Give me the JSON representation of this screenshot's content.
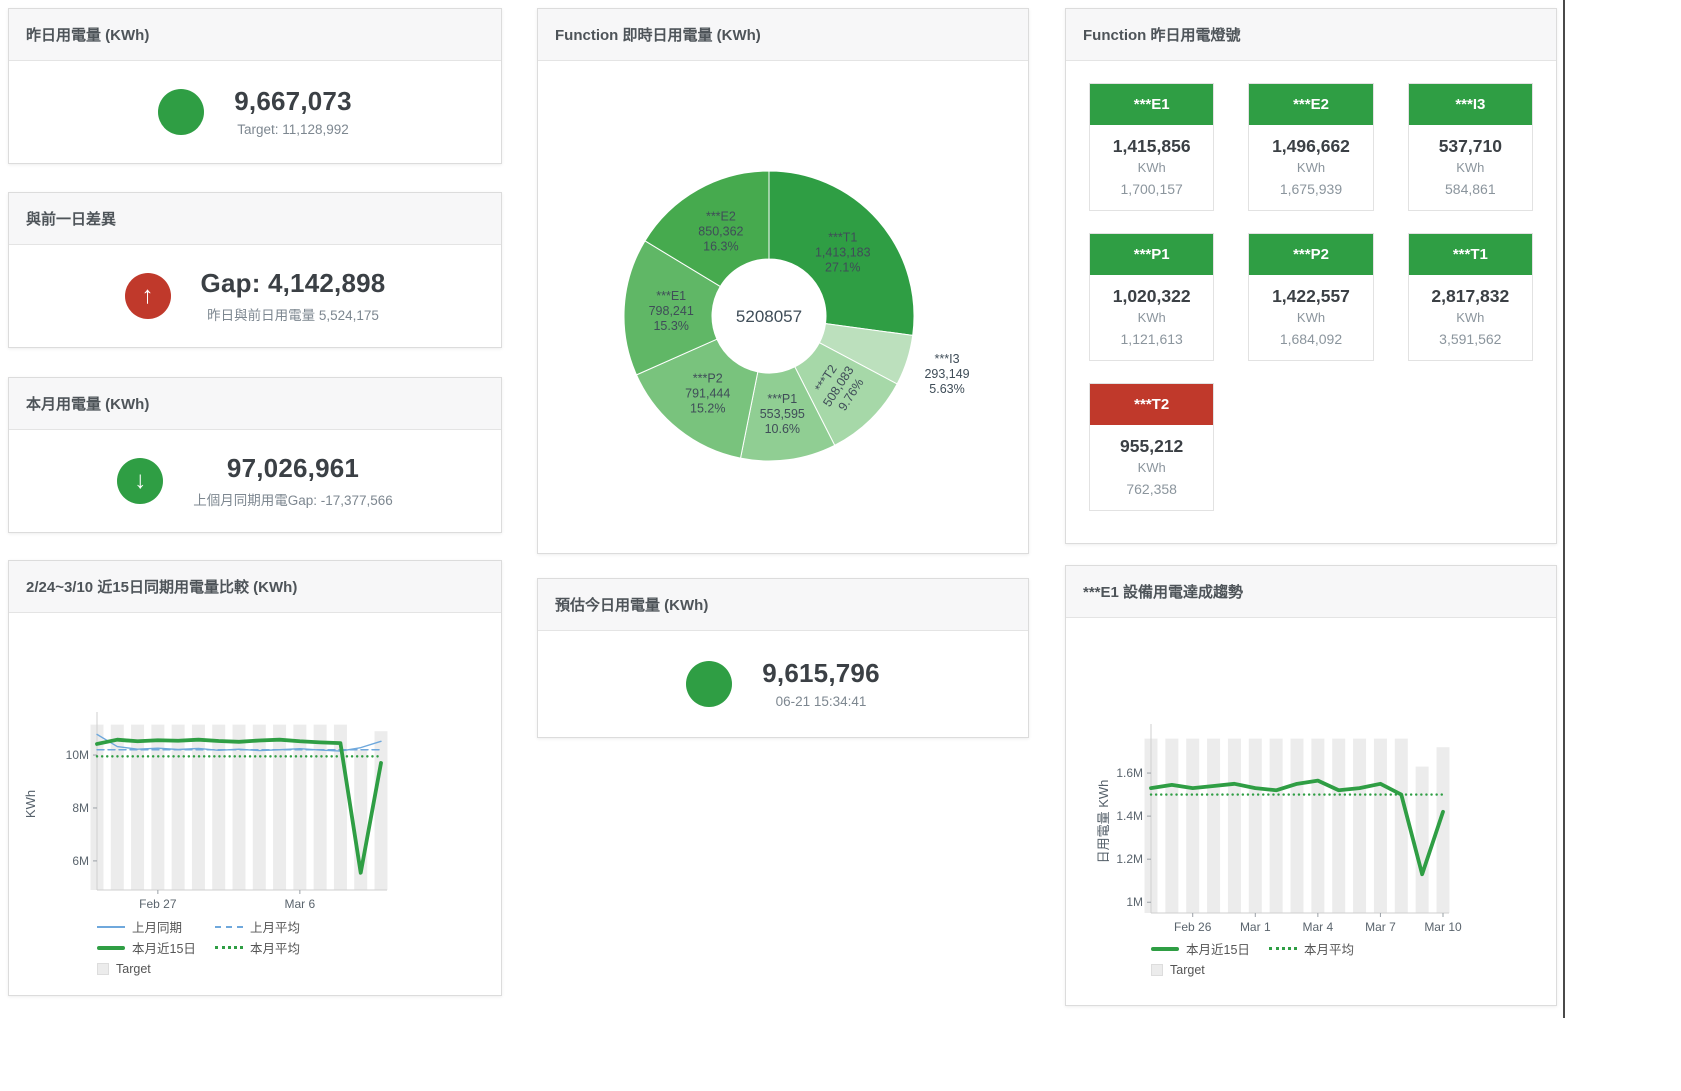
{
  "colors": {
    "green": "#2f9e44",
    "red": "#c0392b",
    "blue": "#6fa8dc",
    "target_bar": "#ececec"
  },
  "panels": {
    "yesterday": {
      "title": "昨日用電量 (KWh)",
      "value": "9,667,073",
      "subtitle": "Target: 11,128,992",
      "icon_glyph": ""
    },
    "gap": {
      "title": "與前一日差異",
      "value": "Gap: 4,142,898",
      "subtitle": "昨日與前日用電量 5,524,175",
      "icon_glyph": "↑"
    },
    "month": {
      "title": "本月用電量 (KWh)",
      "value": "97,026,961",
      "subtitle": "上個月同期用電Gap: -17,377,566",
      "icon_glyph": "↓"
    },
    "estimate": {
      "title": "預估今日用電量 (KWh)",
      "value": "9,615,796",
      "subtitle": "06-21 15:34:41",
      "icon_glyph": ""
    },
    "realtime_donut": {
      "title": "Function 即時日用電量 (KWh)",
      "center_total": "5208057"
    },
    "lights": {
      "title": "Function 昨日用電燈號",
      "tiles": [
        {
          "label": "***E1",
          "value": "1,415,856",
          "unit": "KWh",
          "target": "1,700,157",
          "status": "green"
        },
        {
          "label": "***E2",
          "value": "1,496,662",
          "unit": "KWh",
          "target": "1,675,939",
          "status": "green"
        },
        {
          "label": "***I3",
          "value": "537,710",
          "unit": "KWh",
          "target": "584,861",
          "status": "green"
        },
        {
          "label": "***P1",
          "value": "1,020,322",
          "unit": "KWh",
          "target": "1,121,613",
          "status": "green"
        },
        {
          "label": "***P2",
          "value": "1,422,557",
          "unit": "KWh",
          "target": "1,684,092",
          "status": "green"
        },
        {
          "label": "***T1",
          "value": "2,817,832",
          "unit": "KWh",
          "target": "3,591,562",
          "status": "green"
        },
        {
          "label": "***T2",
          "value": "955,212",
          "unit": "KWh",
          "target": "762,358",
          "status": "red"
        }
      ]
    },
    "compare15": {
      "title": "2/24~3/10 近15日同期用電量比較 (KWh)"
    },
    "trend": {
      "title": "***E1 設備用電達成趨勢"
    }
  },
  "chart_data": [
    {
      "type": "pie",
      "title": "Function 即時日用電量 (KWh)",
      "center_label": "5208057",
      "slices": [
        {
          "name": "***T1",
          "value": 1413183,
          "label": "1,413,183",
          "pct": 27.1,
          "pct_label": "27.1%",
          "color": "#2f9e44"
        },
        {
          "name": "***I3",
          "value": 293149,
          "label": "293,149",
          "pct": 5.63,
          "pct_label": "5.63%",
          "color": "#bce0bd"
        },
        {
          "name": "***T2",
          "value": 508083,
          "label": "508,083",
          "pct": 9.76,
          "pct_label": "9.76%",
          "color": "#a6d8a8"
        },
        {
          "name": "***P1",
          "value": 553595,
          "label": "553,595",
          "pct": 10.6,
          "pct_label": "10.6%",
          "color": "#90ce93"
        },
        {
          "name": "***P2",
          "value": 791444,
          "label": "791,444",
          "pct": 15.2,
          "pct_label": "15.2%",
          "color": "#79c37d"
        },
        {
          "name": "***E1",
          "value": 798241,
          "label": "798,241",
          "pct": 15.3,
          "pct_label": "15.3%",
          "color": "#60b766"
        },
        {
          "name": "***E2",
          "value": 850362,
          "label": "850,362",
          "pct": 16.3,
          "pct_label": "16.3%",
          "color": "#46aa4e"
        }
      ]
    },
    {
      "type": "line",
      "title": "2/24~3/10 近15日同期用電量比較 (KWh)",
      "ylabel": "KWh",
      "ylim": [
        4900000,
        11400000
      ],
      "grid": false,
      "legend_position": "bottom",
      "x_dates": [
        "2/24",
        "2/25",
        "2/26",
        "2/27",
        "2/28",
        "3/1",
        "3/2",
        "3/3",
        "3/4",
        "3/5",
        "3/6",
        "3/7",
        "3/8",
        "3/9",
        "3/10"
      ],
      "x_ticks": [
        {
          "index": 3,
          "label": "Feb 27"
        },
        {
          "index": 10,
          "label": "Mar 6"
        }
      ],
      "y_ticks": [
        {
          "value": 6000000,
          "label": "6M"
        },
        {
          "value": 8000000,
          "label": "8M"
        },
        {
          "value": 10000000,
          "label": "10M"
        }
      ],
      "series": [
        {
          "name": "Target",
          "type": "bar",
          "color": "#ececec",
          "values": [
            11150000,
            11150000,
            11150000,
            11150000,
            11150000,
            11150000,
            11150000,
            11150000,
            11150000,
            11150000,
            11150000,
            11150000,
            11150000,
            10200000,
            10900000
          ]
        },
        {
          "name": "上月同期",
          "type": "line",
          "style": "solid-thin",
          "color": "#6fa8dc",
          "values": [
            10780000,
            10320000,
            10220000,
            10260000,
            10210000,
            10250000,
            10180000,
            10220000,
            10170000,
            10200000,
            10240000,
            10190000,
            10150000,
            10280000,
            10520000
          ]
        },
        {
          "name": "上月平均",
          "type": "line",
          "style": "dashed",
          "color": "#6fa8dc",
          "constant": 10200000
        },
        {
          "name": "本月近15日",
          "type": "line",
          "style": "solid-thick",
          "color": "#2f9e44",
          "values": [
            10420000,
            10580000,
            10520000,
            10560000,
            10540000,
            10580000,
            10530000,
            10500000,
            10550000,
            10580000,
            10520000,
            10480000,
            10450000,
            5550000,
            9700000
          ]
        },
        {
          "name": "本月平均",
          "type": "line",
          "style": "dotted",
          "color": "#2f9e44",
          "constant": 9950000
        }
      ],
      "legend": [
        "上月同期",
        "上月平均",
        "本月近15日",
        "本月平均",
        "Target"
      ]
    },
    {
      "type": "line",
      "title": "***E1 設備用電達成趨勢",
      "ylabel": "日用電量 KWh",
      "ylim": [
        950000,
        1800000
      ],
      "grid": false,
      "legend_position": "bottom",
      "x_dates": [
        "2/24",
        "2/25",
        "2/26",
        "2/27",
        "2/28",
        "3/1",
        "3/2",
        "3/3",
        "3/4",
        "3/5",
        "3/6",
        "3/7",
        "3/8",
        "3/9",
        "3/10"
      ],
      "x_ticks": [
        {
          "index": 2,
          "label": "Feb 26"
        },
        {
          "index": 5,
          "label": "Mar 1"
        },
        {
          "index": 8,
          "label": "Mar 4"
        },
        {
          "index": 11,
          "label": "Mar 7"
        },
        {
          "index": 14,
          "label": "Mar 10"
        }
      ],
      "y_ticks": [
        {
          "value": 1000000,
          "label": "1M"
        },
        {
          "value": 1200000,
          "label": "1.2M"
        },
        {
          "value": 1400000,
          "label": "1.4M"
        },
        {
          "value": 1600000,
          "label": "1.6M"
        }
      ],
      "series": [
        {
          "name": "Target",
          "type": "bar",
          "color": "#ececec",
          "values": [
            1760000,
            1760000,
            1760000,
            1760000,
            1760000,
            1760000,
            1760000,
            1760000,
            1760000,
            1760000,
            1760000,
            1760000,
            1760000,
            1630000,
            1720000
          ]
        },
        {
          "name": "本月近15日",
          "type": "line",
          "style": "solid-thick",
          "color": "#2f9e44",
          "values": [
            1530000,
            1545000,
            1530000,
            1540000,
            1550000,
            1530000,
            1520000,
            1550000,
            1565000,
            1520000,
            1530000,
            1550000,
            1500000,
            1130000,
            1420000
          ]
        },
        {
          "name": "本月平均",
          "type": "line",
          "style": "dotted",
          "color": "#2f9e44",
          "constant": 1500000
        }
      ],
      "legend": [
        "本月近15日",
        "本月平均",
        "Target"
      ]
    }
  ]
}
